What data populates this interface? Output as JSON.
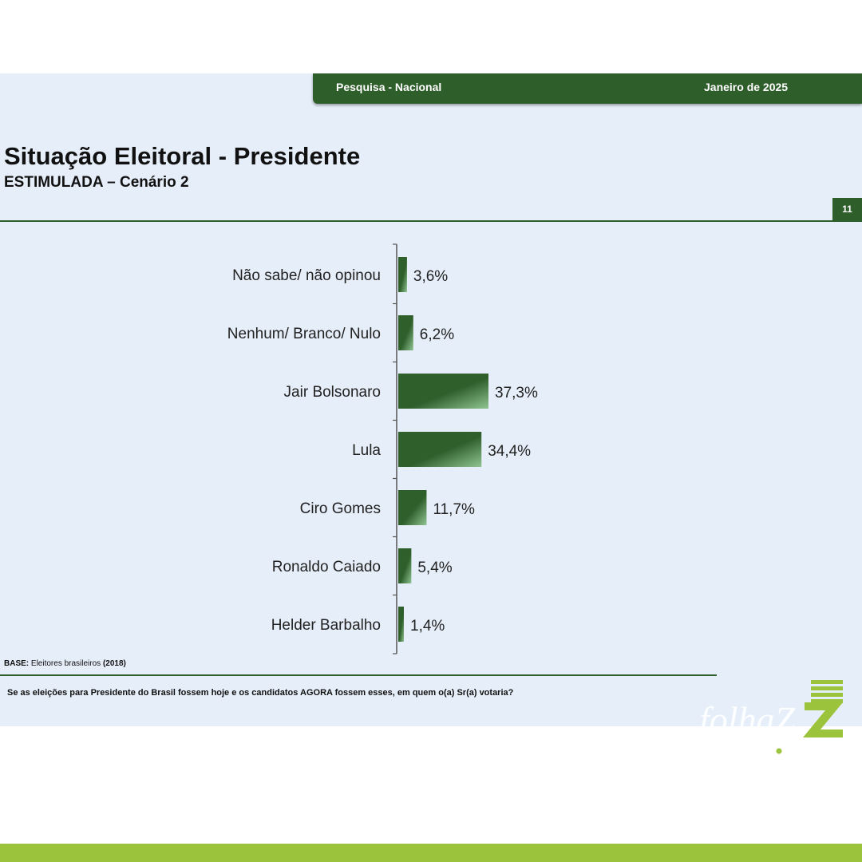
{
  "header": {
    "left_label": "Pesquisa - Nacional",
    "right_label": "Janeiro de 2025",
    "page_number": "11"
  },
  "slide_title": "Situação Eleitoral - Presidente",
  "slide_subtitle": "ESTIMULADA – Cenário 2",
  "base_note": {
    "prefix": "BASE:",
    "text": "Eleitores brasileiros",
    "suffix": "(2018)"
  },
  "question": "Se as eleições para Presidente do Brasil fossem hoje e os candidatos AGORA fossem esses, em quem o(a) Sr(a) votaria?",
  "logo": {
    "text": "folhaZ",
    "domain": ".com"
  },
  "colors": {
    "bar_dark": "#2f5f2b",
    "bar_light": "#8fc492",
    "header_green": "#2e5e2a",
    "footer_green": "#9bc33c"
  },
  "chart_data": {
    "type": "bar",
    "orientation": "horizontal",
    "categories": [
      "Não sabe/ não opinou",
      "Nenhum/ Branco/ Nulo",
      "Jair Bolsonaro",
      "Lula",
      "Ciro Gomes",
      "Ronaldo Caiado",
      "Helder Barbalho"
    ],
    "values": [
      3.6,
      6.2,
      37.3,
      34.4,
      11.7,
      5.4,
      1.4
    ],
    "value_labels": [
      "3,6%",
      "6,2%",
      "37,3%",
      "34,4%",
      "11,7%",
      "5,4%",
      "1,4%"
    ],
    "title": "Situação Eleitoral - Presidente",
    "xlabel": "",
    "ylabel": "",
    "xlim": [
      0,
      37.3
    ],
    "grid": false,
    "legend": "none"
  }
}
